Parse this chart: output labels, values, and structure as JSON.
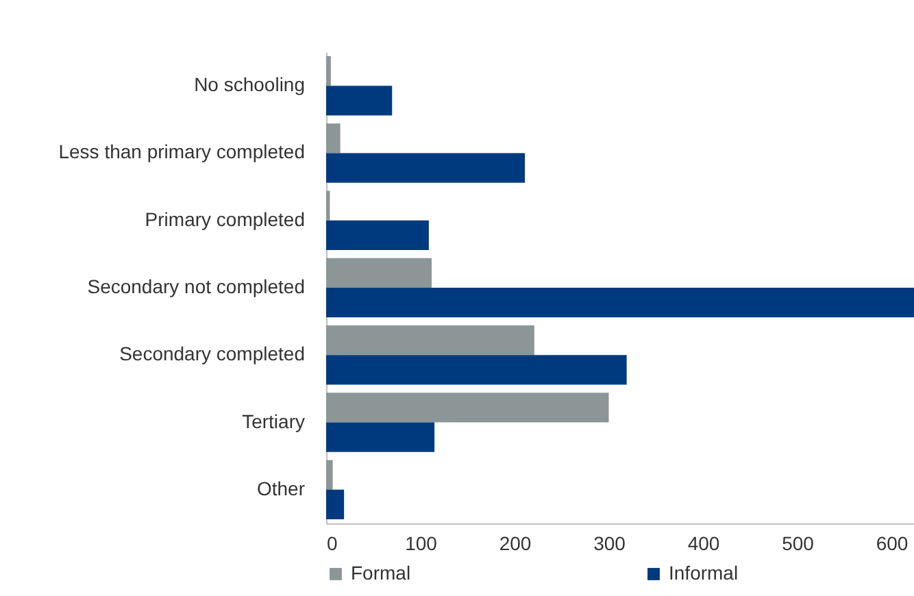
{
  "chart_data": {
    "type": "bar",
    "orientation": "horizontal",
    "categories": [
      "No schooling",
      "Less than primary completed",
      "Primary completed",
      "Secondary not completed",
      "Secondary completed",
      "Tertiary",
      "Other"
    ],
    "series": [
      {
        "name": "Formal",
        "color": "#8c9696",
        "values": [
          5,
          15,
          4,
          112,
          221,
          300,
          7
        ]
      },
      {
        "name": "Informal",
        "color": "#003a7e",
        "values": [
          70,
          211,
          109,
          624,
          319,
          115,
          19
        ]
      }
    ],
    "xlim": [
      0,
      624
    ],
    "xticks": [
      0,
      100,
      200,
      300,
      400,
      500,
      600
    ],
    "grid": false,
    "legend": "bottom"
  }
}
